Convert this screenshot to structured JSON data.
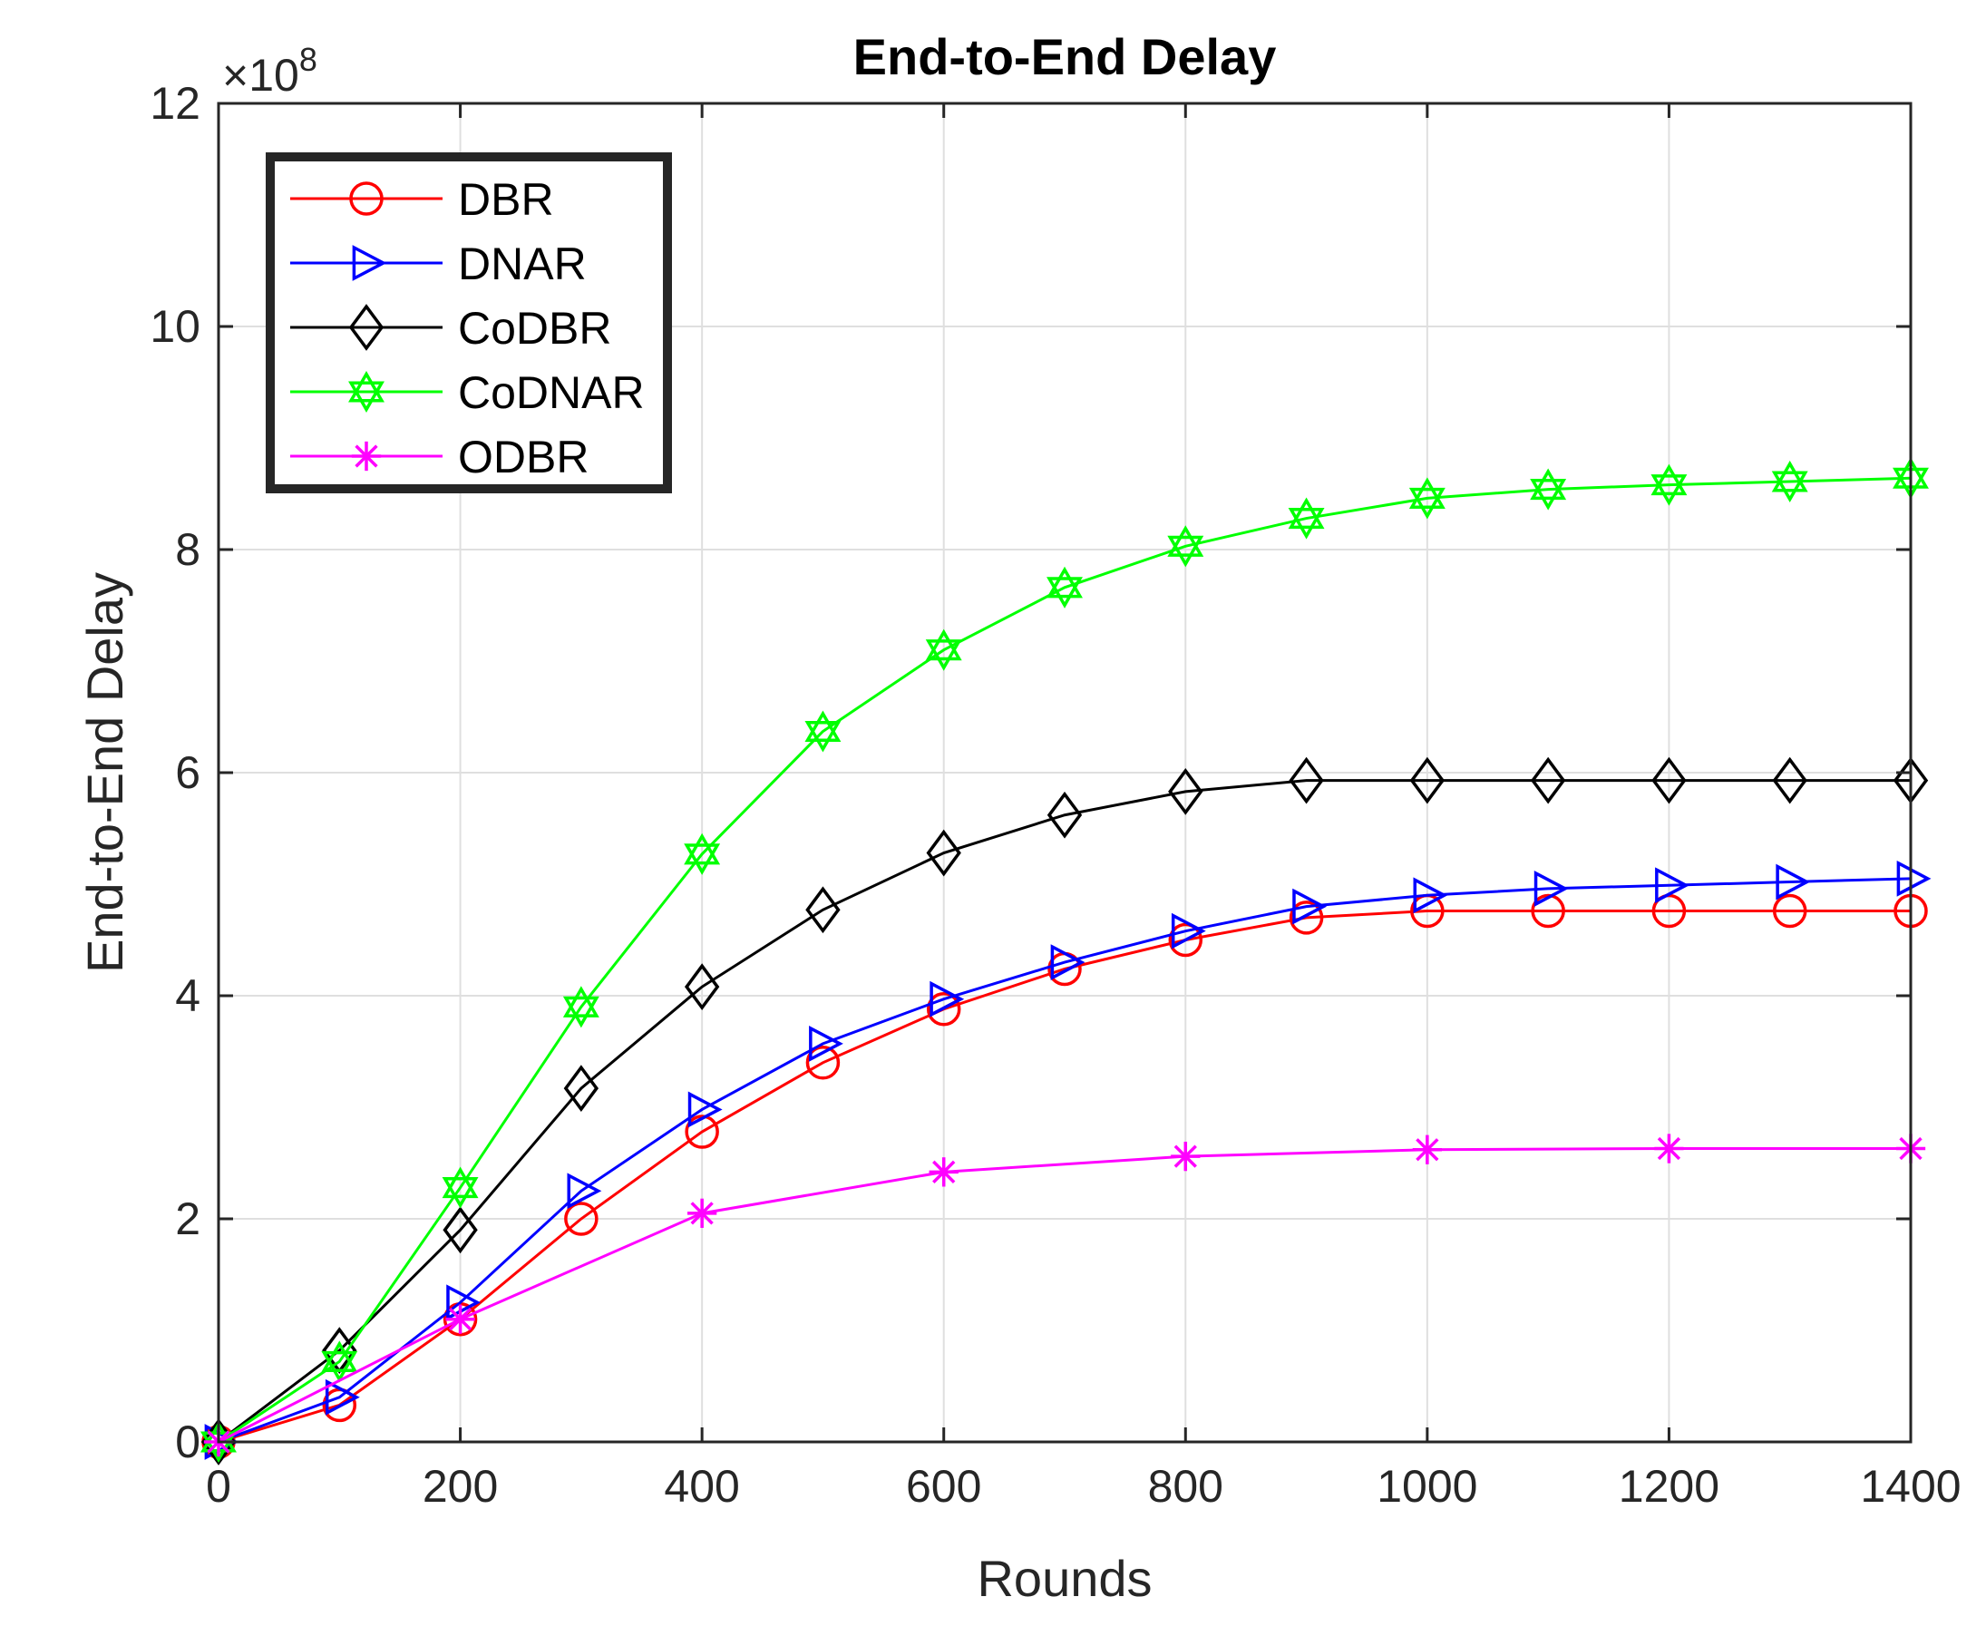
{
  "chart_data": {
    "type": "line",
    "title": "End-to-End Delay",
    "xlabel": "Rounds",
    "ylabel": "End-to-End Delay",
    "y_exponent_prefix": "×10",
    "y_exponent_power": "8",
    "xlim": [
      0,
      1400
    ],
    "ylim": [
      0,
      12
    ],
    "x_ticks": [
      "0",
      "200",
      "400",
      "600",
      "800",
      "1000",
      "1200",
      "1400"
    ],
    "y_ticks": [
      "0",
      "2",
      "4",
      "6",
      "8",
      "10",
      "12"
    ],
    "grid": true,
    "legend_position": "top-left",
    "series": [
      {
        "name": "DBR",
        "color": "#ff0000",
        "marker": "circle",
        "x": [
          0,
          100,
          200,
          300,
          400,
          500,
          600,
          700,
          800,
          900,
          1000,
          1100,
          1200,
          1300,
          1400
        ],
        "y": [
          0,
          0.33,
          1.1,
          2.0,
          2.78,
          3.4,
          3.88,
          4.24,
          4.5,
          4.7,
          4.76,
          4.76,
          4.76,
          4.76,
          4.76
        ]
      },
      {
        "name": "DNAR",
        "color": "#0000ff",
        "marker": "triangle-right",
        "x": [
          0,
          100,
          200,
          300,
          400,
          500,
          600,
          700,
          800,
          900,
          1000,
          1100,
          1200,
          1300,
          1400
        ],
        "y": [
          0,
          0.4,
          1.25,
          2.25,
          2.98,
          3.57,
          3.97,
          4.3,
          4.58,
          4.8,
          4.9,
          4.96,
          4.99,
          5.02,
          5.05
        ]
      },
      {
        "name": "CoDBR",
        "color": "#000000",
        "marker": "diamond",
        "x": [
          0,
          100,
          200,
          300,
          400,
          500,
          600,
          700,
          800,
          900,
          1000,
          1100,
          1200,
          1300,
          1400
        ],
        "y": [
          0,
          0.82,
          1.9,
          3.17,
          4.08,
          4.77,
          5.28,
          5.62,
          5.83,
          5.93,
          5.93,
          5.93,
          5.93,
          5.93,
          5.93
        ]
      },
      {
        "name": "CoDNAR",
        "color": "#00ff00",
        "marker": "hexagram",
        "x": [
          0,
          100,
          200,
          300,
          400,
          500,
          600,
          700,
          800,
          900,
          1000,
          1100,
          1200,
          1300,
          1400
        ],
        "y": [
          0,
          0.72,
          2.28,
          3.9,
          5.27,
          6.37,
          7.1,
          7.66,
          8.03,
          8.28,
          8.46,
          8.54,
          8.58,
          8.61,
          8.64
        ]
      },
      {
        "name": "ODBR",
        "color": "#ff00ff",
        "marker": "asterisk",
        "x": [
          0,
          200,
          400,
          600,
          800,
          1000,
          1200,
          1400
        ],
        "y": [
          0,
          1.1,
          2.05,
          2.42,
          2.56,
          2.62,
          2.63,
          2.63
        ]
      }
    ]
  }
}
